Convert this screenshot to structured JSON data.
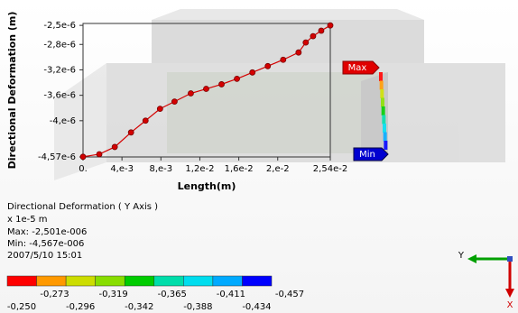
{
  "chart_data": {
    "type": "line",
    "x_label": "Length(m)",
    "y_label": "Directional Deformation (m)",
    "x": [
      0,
      0.00167,
      0.00326,
      0.00493,
      0.00642,
      0.00791,
      0.0094,
      0.01107,
      0.01265,
      0.01423,
      0.01581,
      0.0174,
      0.01898,
      0.02056,
      0.02214,
      0.02288,
      0.02363,
      0.02447,
      0.0254
    ],
    "values": [
      -4.567e-06,
      -4.527e-06,
      -4.413e-06,
      -4.184e-06,
      -3.999e-06,
      -3.813e-06,
      -3.699e-06,
      -3.57e-06,
      -3.499e-06,
      -3.427e-06,
      -3.341e-06,
      -3.241e-06,
      -3.141e-06,
      -3.041e-06,
      -2.927e-06,
      -2.77e-06,
      -2.67e-06,
      -2.584e-06,
      -2.501e-06
    ],
    "color": "#d40000",
    "xlim": [
      0,
      0.0254
    ],
    "ylim": [
      -4.57e-06,
      -2.47e-06
    ],
    "xticks": [
      {
        "value": 0,
        "label": "0."
      },
      {
        "value": 0.004,
        "label": "4,e-3"
      },
      {
        "value": 0.008,
        "label": "8,e-3"
      },
      {
        "value": 0.012,
        "label": "1,2e-2"
      },
      {
        "value": 0.016,
        "label": "1,6e-2"
      },
      {
        "value": 0.02,
        "label": "2,e-2"
      },
      {
        "value": 0.0254,
        "label": "2,54e-2"
      }
    ],
    "yticks": [
      {
        "value": -2.5e-06,
        "label": "-2,5e-6"
      },
      {
        "value": -2.8e-06,
        "label": "-2,8e-6"
      },
      {
        "value": -3.2e-06,
        "label": "-3,2e-6"
      },
      {
        "value": -3.6e-06,
        "label": "-3,6e-6"
      },
      {
        "value": -4e-06,
        "label": "-4,e-6"
      },
      {
        "value": -4.57e-06,
        "label": "-4,57e-6"
      }
    ]
  },
  "legend": {
    "title": "Directional Deformation ( Y Axis )",
    "scale": "x 1e-5 m",
    "max": "Max: -2,501e-006",
    "min": "Min: -4,567e-006",
    "date": "2007/5/10 15:01",
    "colors": [
      "#ff0000",
      "#ff9900",
      "#ccdd00",
      "#88dd00",
      "#00cc00",
      "#00ddaa",
      "#00ddee",
      "#00aaff",
      "#0000ff"
    ],
    "labels_lower": [
      "-0,250",
      "-0,296",
      "-0,342",
      "-0,388",
      "-0,434"
    ],
    "labels_upper": [
      "-0,273",
      "-0,319",
      "-0,365",
      "-0,411",
      "-0,457"
    ]
  },
  "markers": {
    "max": "Max",
    "min": "Min"
  },
  "triad": {
    "y": "Y",
    "x": "X"
  }
}
